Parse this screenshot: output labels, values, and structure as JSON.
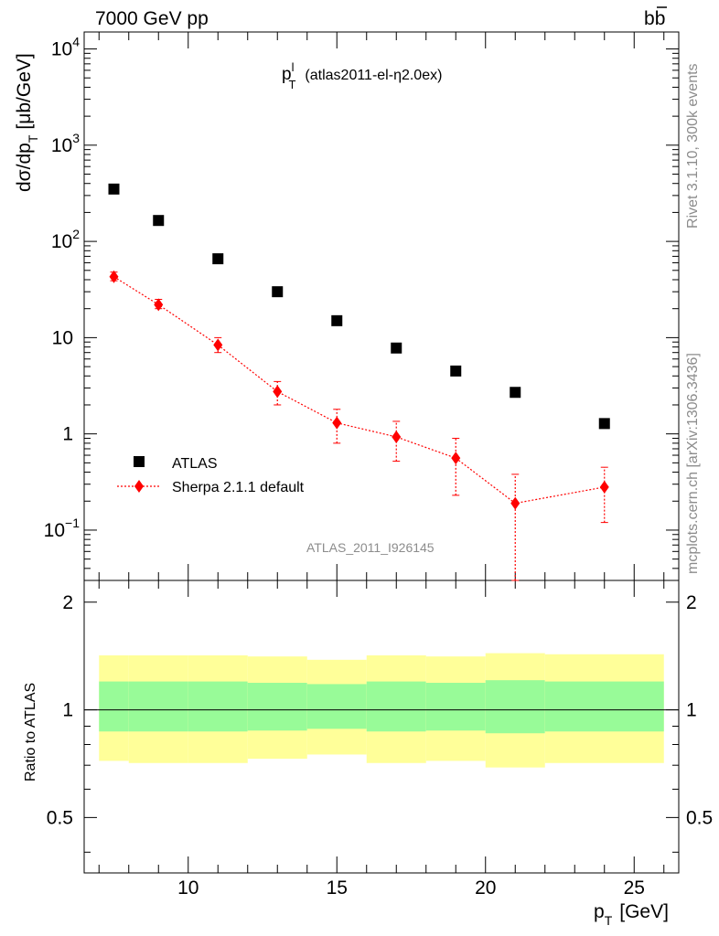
{
  "header": {
    "energy_label": "7000 GeV pp",
    "process_label_main": "b",
    "process_label_bar": "b"
  },
  "side": {
    "rivet_label": "Rivet 3.1.10,  300k events",
    "source_label": "mcplots.cern.ch [arXiv:1306.3436]"
  },
  "chart_data": [
    {
      "type": "scatter",
      "title_main": "p",
      "title_sup": "l",
      "title_sub": "T",
      "title_rest": "(atlas2011-el-η2.0ex)",
      "ylabel_main": "dσ/dp",
      "ylabel_sub": "T",
      "ylabel_unit": "[μb/GeV]",
      "xlim": [
        6.5,
        26.5
      ],
      "ylim": [
        0.03,
        15000
      ],
      "yscale": "log",
      "ytick_labels": [
        {
          "value": 0.1,
          "base": "10",
          "exp": "−1"
        },
        {
          "value": 1,
          "base": "1",
          "exp": ""
        },
        {
          "value": 10,
          "base": "10",
          "exp": ""
        },
        {
          "value": 100,
          "base": "10",
          "exp": "2"
        },
        {
          "value": 1000,
          "base": "10",
          "exp": "3"
        },
        {
          "value": 10000,
          "base": "10",
          "exp": "4"
        }
      ],
      "analysis_label": "ATLAS_2011_I926145",
      "legend_position": "lower-left",
      "series": [
        {
          "name": "ATLAS",
          "marker": "square",
          "color": "#000000",
          "x": [
            7.5,
            9,
            11,
            13,
            15,
            17,
            19,
            21,
            24
          ],
          "y": [
            350,
            165,
            66,
            30,
            15,
            7.8,
            4.5,
            2.7,
            1.28
          ]
        },
        {
          "name": "Sherpa 2.1.1 default",
          "marker": "diamond",
          "color": "#ff0000",
          "x": [
            7.5,
            9,
            11,
            13,
            15,
            17,
            19,
            21,
            24
          ],
          "y": [
            43,
            22,
            8.4,
            2.75,
            1.3,
            0.93,
            0.56,
            0.19,
            0.28
          ],
          "y_low": [
            39,
            20,
            7.0,
            2.0,
            0.8,
            0.52,
            0.23,
            0.03,
            0.12
          ],
          "y_high": [
            48,
            25,
            10,
            3.5,
            1.8,
            1.35,
            0.9,
            0.38,
            0.45
          ]
        }
      ]
    },
    {
      "type": "band",
      "ylabel": "Ratio to ATLAS",
      "xlabel_main": "p",
      "xlabel_sub": "T",
      "xlabel_unit": "[GeV]",
      "xlim": [
        6.5,
        26.5
      ],
      "ylim": [
        0.35,
        2.3
      ],
      "yscale": "log",
      "ytick_labels": [
        {
          "value": 0.5,
          "label": "0.5"
        },
        {
          "value": 1,
          "label": "1"
        },
        {
          "value": 2,
          "label": "2"
        }
      ],
      "xtick_labels": [
        {
          "value": 10,
          "label": "10"
        },
        {
          "value": 15,
          "label": "15"
        },
        {
          "value": 20,
          "label": "20"
        },
        {
          "value": 25,
          "label": "25"
        }
      ],
      "bins": [
        {
          "x": [
            7,
            8
          ],
          "inner": [
            0.87,
            1.2
          ],
          "outer": [
            0.72,
            1.42
          ]
        },
        {
          "x": [
            8,
            10
          ],
          "inner": [
            0.87,
            1.2
          ],
          "outer": [
            0.71,
            1.42
          ]
        },
        {
          "x": [
            10,
            12
          ],
          "inner": [
            0.87,
            1.2
          ],
          "outer": [
            0.71,
            1.42
          ]
        },
        {
          "x": [
            12,
            14
          ],
          "inner": [
            0.875,
            1.19
          ],
          "outer": [
            0.73,
            1.41
          ]
        },
        {
          "x": [
            14,
            16
          ],
          "inner": [
            0.885,
            1.18
          ],
          "outer": [
            0.75,
            1.38
          ]
        },
        {
          "x": [
            16,
            18
          ],
          "inner": [
            0.87,
            1.2
          ],
          "outer": [
            0.71,
            1.42
          ]
        },
        {
          "x": [
            18,
            20
          ],
          "inner": [
            0.875,
            1.19
          ],
          "outer": [
            0.72,
            1.41
          ]
        },
        {
          "x": [
            20,
            22
          ],
          "inner": [
            0.86,
            1.21
          ],
          "outer": [
            0.69,
            1.44
          ]
        },
        {
          "x": [
            22,
            26
          ],
          "inner": [
            0.87,
            1.2
          ],
          "outer": [
            0.71,
            1.43
          ]
        }
      ],
      "colors": {
        "inner": "#98fb98",
        "outer": "#ffff99"
      }
    }
  ]
}
